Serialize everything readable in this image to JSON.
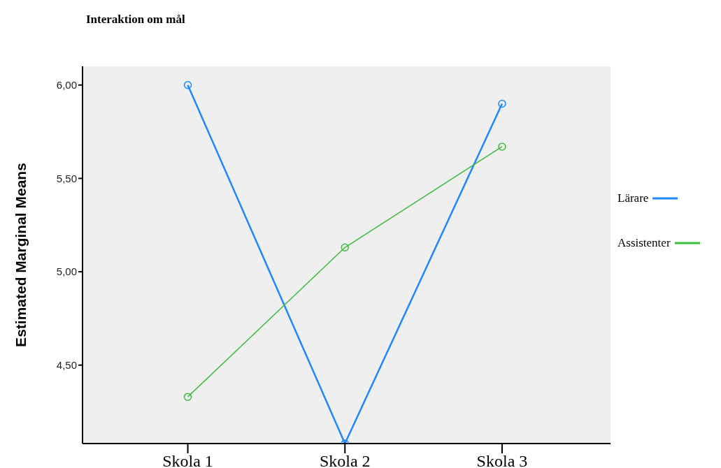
{
  "chart_data": {
    "type": "line",
    "title": "Interaktion om mål",
    "ylabel": "Estimated Marginal Means",
    "categories": [
      "Skola 1",
      "Skola 2",
      "Skola 3"
    ],
    "series": [
      {
        "name": "Lärare",
        "color": "#1e88ff",
        "values": [
          6.0,
          4.08,
          5.9
        ]
      },
      {
        "name": "Assistenter",
        "color": "#3cbc3c",
        "values": [
          4.33,
          5.13,
          5.67
        ]
      }
    ],
    "ylim": [
      4.08,
      6.1
    ],
    "yticks": [
      {
        "value": 4.5,
        "label": "4,50"
      },
      {
        "value": 5,
        "label": "5,00"
      },
      {
        "value": 5.5,
        "label": "5,50"
      },
      {
        "value": 6,
        "label": "6,00"
      }
    ],
    "marker": "circle",
    "legend": "right",
    "grid": false
  }
}
